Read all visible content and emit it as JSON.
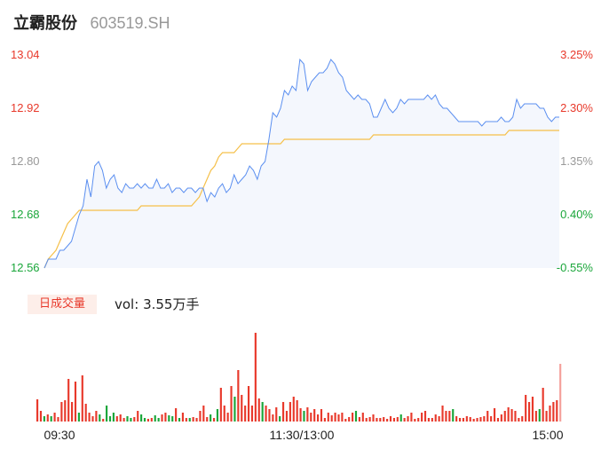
{
  "header": {
    "name": "立霸股份",
    "code": "603519.SH"
  },
  "volume": {
    "tab_label": "日成交量",
    "vol_label": "vol:",
    "vol_value": "3.55万手"
  },
  "colors": {
    "price_line": "#5b8ff0",
    "avg_line": "#f5c04a",
    "up": "#e8392b",
    "down": "#1aa63a",
    "neutral_axis": "#999999",
    "area_fill": "#f4f7fd"
  },
  "chart_data": [
    {
      "type": "line",
      "title": "",
      "ylim": [
        12.56,
        13.04
      ],
      "y_ticks_left": [
        "13.04",
        "12.92",
        "12.80",
        "12.68",
        "12.56"
      ],
      "y_ticks_right": [
        "3.25%",
        "2.30%",
        "1.35%",
        "0.40%",
        "-0.55%"
      ],
      "x_ticks": [
        "09:30",
        "11:30/13:00",
        "15:00"
      ],
      "grid": false,
      "series": [
        {
          "role": "price",
          "color": "#5b8ff0",
          "values": [
            12.56,
            12.58,
            12.58,
            12.58,
            12.6,
            12.6,
            12.61,
            12.62,
            12.65,
            12.68,
            12.7,
            12.76,
            12.72,
            12.79,
            12.8,
            12.78,
            12.74,
            12.76,
            12.77,
            12.74,
            12.73,
            12.75,
            12.74,
            12.74,
            12.75,
            12.74,
            12.75,
            12.74,
            12.74,
            12.76,
            12.74,
            12.74,
            12.75,
            12.73,
            12.74,
            12.74,
            12.73,
            12.74,
            12.74,
            12.73,
            12.74,
            12.74,
            12.71,
            12.73,
            12.72,
            12.74,
            12.75,
            12.73,
            12.74,
            12.77,
            12.75,
            12.76,
            12.77,
            12.79,
            12.78,
            12.76,
            12.79,
            12.8,
            12.85,
            12.91,
            12.9,
            12.92,
            12.96,
            12.95,
            12.97,
            12.96,
            13.03,
            13.02,
            12.96,
            12.98,
            12.99,
            13.0,
            13.0,
            13.01,
            13.03,
            13.02,
            13.0,
            12.99,
            12.96,
            12.95,
            12.94,
            12.95,
            12.94,
            12.94,
            12.93,
            12.9,
            12.9,
            12.92,
            12.94,
            12.92,
            12.91,
            12.92,
            12.94,
            12.93,
            12.94,
            12.94,
            12.94,
            12.94,
            12.94,
            12.95,
            12.94,
            12.95,
            12.93,
            12.92,
            12.92,
            12.91,
            12.9,
            12.89,
            12.89,
            12.89,
            12.89,
            12.89,
            12.89,
            12.88,
            12.89,
            12.89,
            12.89,
            12.89,
            12.9,
            12.89,
            12.89,
            12.9,
            12.94,
            12.92,
            12.93,
            12.93,
            12.93,
            12.93,
            12.92,
            12.92,
            12.9,
            12.89,
            12.9,
            12.9
          ]
        },
        {
          "role": "average",
          "color": "#f5c04a",
          "values": [
            12.56,
            12.58,
            12.59,
            12.6,
            12.62,
            12.64,
            12.66,
            12.67,
            12.68,
            12.69,
            12.69,
            12.69,
            12.69,
            12.69,
            12.69,
            12.69,
            12.69,
            12.69,
            12.69,
            12.69,
            12.69,
            12.69,
            12.69,
            12.69,
            12.69,
            12.7,
            12.7,
            12.7,
            12.7,
            12.7,
            12.7,
            12.7,
            12.7,
            12.7,
            12.7,
            12.7,
            12.7,
            12.7,
            12.7,
            12.71,
            12.72,
            12.74,
            12.76,
            12.78,
            12.79,
            12.81,
            12.82,
            12.82,
            12.82,
            12.82,
            12.83,
            12.84,
            12.84,
            12.84,
            12.84,
            12.84,
            12.84,
            12.84,
            12.84,
            12.84,
            12.84,
            12.84,
            12.85,
            12.85,
            12.85,
            12.85,
            12.85,
            12.85,
            12.85,
            12.85,
            12.85,
            12.85,
            12.85,
            12.85,
            12.85,
            12.85,
            12.85,
            12.85,
            12.85,
            12.85,
            12.85,
            12.85,
            12.85,
            12.85,
            12.85,
            12.86,
            12.86,
            12.86,
            12.86,
            12.86,
            12.86,
            12.86,
            12.86,
            12.86,
            12.86,
            12.86,
            12.86,
            12.86,
            12.86,
            12.86,
            12.86,
            12.86,
            12.86,
            12.86,
            12.86,
            12.86,
            12.86,
            12.86,
            12.86,
            12.86,
            12.86,
            12.86,
            12.86,
            12.86,
            12.86,
            12.86,
            12.86,
            12.86,
            12.86,
            12.86,
            12.87,
            12.87,
            12.87,
            12.87,
            12.87,
            12.87,
            12.87,
            12.87,
            12.87,
            12.87,
            12.87,
            12.87,
            12.87,
            12.87
          ]
        }
      ]
    },
    {
      "type": "bar",
      "title": "日成交量",
      "series": [
        {
          "name": "volume",
          "values": [
            25,
            12,
            6,
            8,
            6,
            10,
            5,
            22,
            24,
            48,
            22,
            45,
            10,
            52,
            20,
            10,
            6,
            12,
            8,
            3,
            18,
            6,
            10,
            6,
            8,
            4,
            6,
            4,
            5,
            12,
            8,
            4,
            3,
            4,
            7,
            4,
            8,
            10,
            7,
            6,
            15,
            4,
            10,
            4,
            4,
            5,
            4,
            12,
            18,
            5,
            8,
            4,
            14,
            38,
            18,
            10,
            40,
            28,
            58,
            30,
            18,
            40,
            18,
            100,
            26,
            22,
            18,
            14,
            8,
            16,
            6,
            22,
            12,
            22,
            28,
            24,
            15,
            12,
            16,
            10,
            14,
            8,
            14,
            4,
            10,
            7,
            10,
            8,
            10,
            3,
            5,
            10,
            12,
            5,
            10,
            4,
            5,
            8,
            4,
            4,
            5,
            3,
            6,
            4,
            5,
            8,
            4,
            6,
            10,
            3,
            4,
            10,
            12,
            4,
            4,
            8,
            6,
            18,
            12,
            12,
            14,
            6,
            4,
            4,
            6,
            5,
            3,
            4,
            5,
            6,
            12,
            6,
            15,
            4,
            8,
            12,
            16,
            14,
            12,
            4,
            6,
            30,
            22,
            28,
            12,
            14,
            38,
            12,
            18,
            22,
            24,
            65
          ]
        }
      ],
      "bar_direction": [
        "up",
        "up",
        "down",
        "up",
        "down",
        "up",
        "up",
        "up",
        "up",
        "up",
        "up",
        "up",
        "down",
        "up",
        "up",
        "up",
        "up",
        "up",
        "down",
        "up",
        "down",
        "down",
        "down",
        "up",
        "up",
        "up",
        "down",
        "down",
        "up",
        "up",
        "down",
        "down",
        "up",
        "up",
        "down",
        "down",
        "up",
        "up",
        "down",
        "down",
        "up",
        "down",
        "up",
        "up",
        "down",
        "up",
        "up",
        "up",
        "up",
        "up",
        "down",
        "up",
        "down",
        "up",
        "up",
        "up",
        "up",
        "down",
        "up",
        "up",
        "up",
        "up",
        "up",
        "up",
        "up",
        "down",
        "up",
        "up",
        "up",
        "up",
        "down",
        "up",
        "up",
        "up",
        "up",
        "up",
        "up",
        "down",
        "up",
        "up",
        "up",
        "up",
        "up",
        "up",
        "up",
        "up",
        "up",
        "up",
        "up",
        "up",
        "up",
        "up",
        "down",
        "up",
        "up",
        "up",
        "up",
        "up",
        "up",
        "up",
        "up",
        "up",
        "up",
        "up",
        "up",
        "down",
        "up",
        "up",
        "up",
        "up",
        "up",
        "up",
        "up",
        "up",
        "up",
        "up",
        "up",
        "up",
        "up",
        "up",
        "down",
        "up",
        "up",
        "up",
        "up",
        "up",
        "up",
        "up",
        "up",
        "up",
        "up",
        "up",
        "up",
        "up",
        "up",
        "up",
        "up",
        "up",
        "up",
        "up",
        "up",
        "up",
        "up",
        "up",
        "up",
        "down",
        "up",
        "up",
        "up",
        "up",
        "up",
        "up"
      ]
    }
  ]
}
